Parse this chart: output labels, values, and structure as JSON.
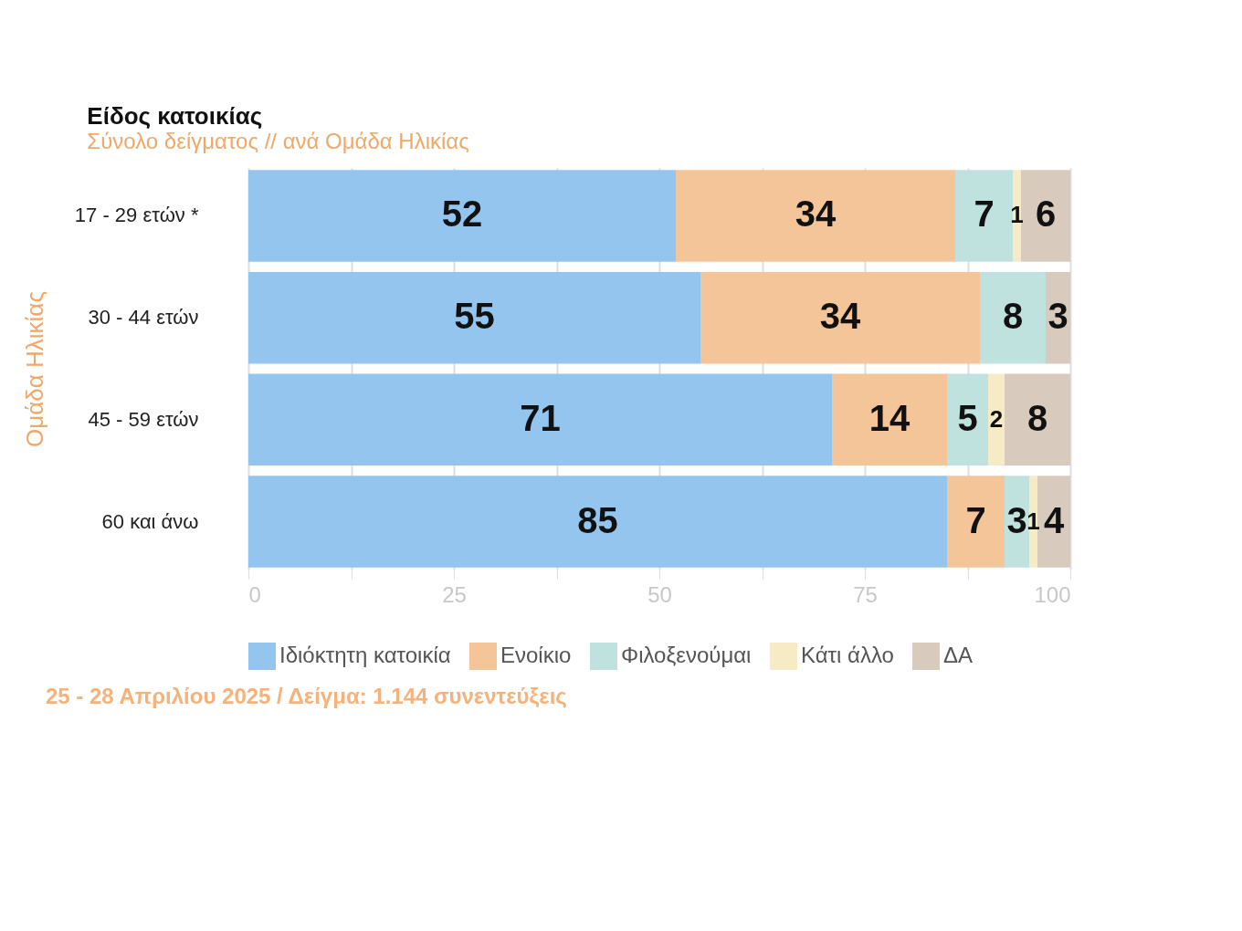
{
  "chart_data": {
    "type": "bar",
    "orientation": "horizontal",
    "stacked": true,
    "title": "Είδος κατοικίας",
    "subtitle": "Σύνολο δείγματος // ανά Ομάδα Ηλικίας",
    "ylabel": "Ομάδα Ηλικίας",
    "categories": [
      "17 - 29 ετών *",
      "30 - 44 ετών",
      "45 - 59 ετών",
      "60 και άνω"
    ],
    "series": [
      {
        "name": "Ιδιόκτητη κατοικία",
        "color": "#93c5ef",
        "values": [
          52,
          55,
          71,
          85
        ]
      },
      {
        "name": "Ενοίκιο",
        "color": "#f5c59a",
        "values": [
          34,
          34,
          14,
          7
        ]
      },
      {
        "name": "Φιλοξενούμαι",
        "color": "#bfe2de",
        "values": [
          7,
          8,
          5,
          3
        ]
      },
      {
        "name": "Κάτι άλλο",
        "color": "#f6ebc4",
        "values": [
          1,
          null,
          2,
          1
        ]
      },
      {
        "name": "ΔΑ",
        "color": "#d8cbbd",
        "values": [
          6,
          3,
          8,
          4
        ]
      }
    ],
    "xlim": [
      0,
      100
    ],
    "xticks": [
      0,
      {
        "value": 12.5,
        "label": null
      },
      25,
      {
        "value": 37.5,
        "label": null
      },
      50,
      {
        "value": 62.5,
        "label": null
      },
      75,
      {
        "value": 87.5,
        "label": null
      },
      100
    ],
    "grid": "x",
    "legend": "bottom",
    "data_labels": true,
    "annotations": [
      "25 - 28 Απριλίου 2025  /  Δείγμα:  1.144 συνεντεύξεις"
    ]
  }
}
